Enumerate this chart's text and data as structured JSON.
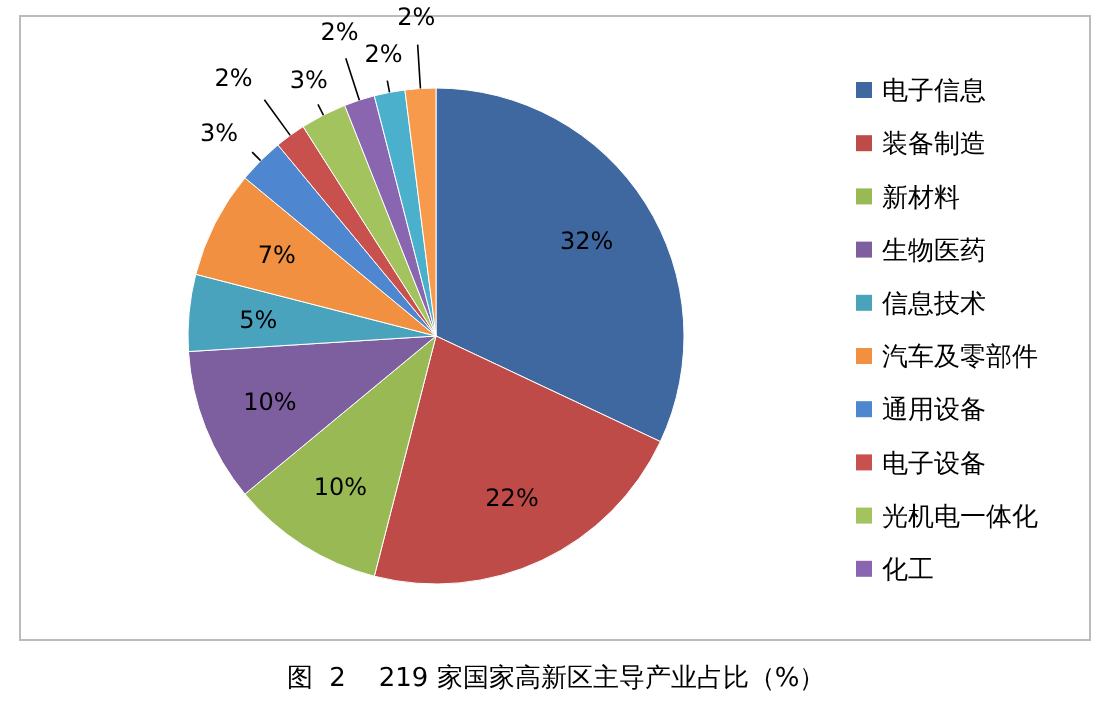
{
  "chart_data": {
    "type": "pie",
    "categories": [
      "电子信息",
      "装备制造",
      "新材料",
      "生物医药",
      "信息技术",
      "汽车及零部件",
      "通用设备",
      "电子设备",
      "光机电一体化",
      "化工",
      null,
      null
    ],
    "values": [
      32,
      22,
      10,
      10,
      5,
      7,
      3,
      2,
      3,
      2,
      2,
      2
    ],
    "colors": [
      "#4068a0",
      "#be4b48",
      "#98b954",
      "#7d5fa0",
      "#4aa3bd",
      "#f09040",
      "#4e86cf",
      "#c8504d",
      "#a3c35e",
      "#8a66b0",
      "#4bb0cc",
      "#f79a4c"
    ],
    "value_labels": [
      "32%",
      "22%",
      "10%",
      "10%",
      "5%",
      "7%",
      "3%",
      "2%",
      "3%",
      "2%",
      "2%",
      "2%"
    ],
    "legend": "right",
    "annotations": [
      "图  2    219 家国家高新区主导产业占比（%）"
    ]
  }
}
